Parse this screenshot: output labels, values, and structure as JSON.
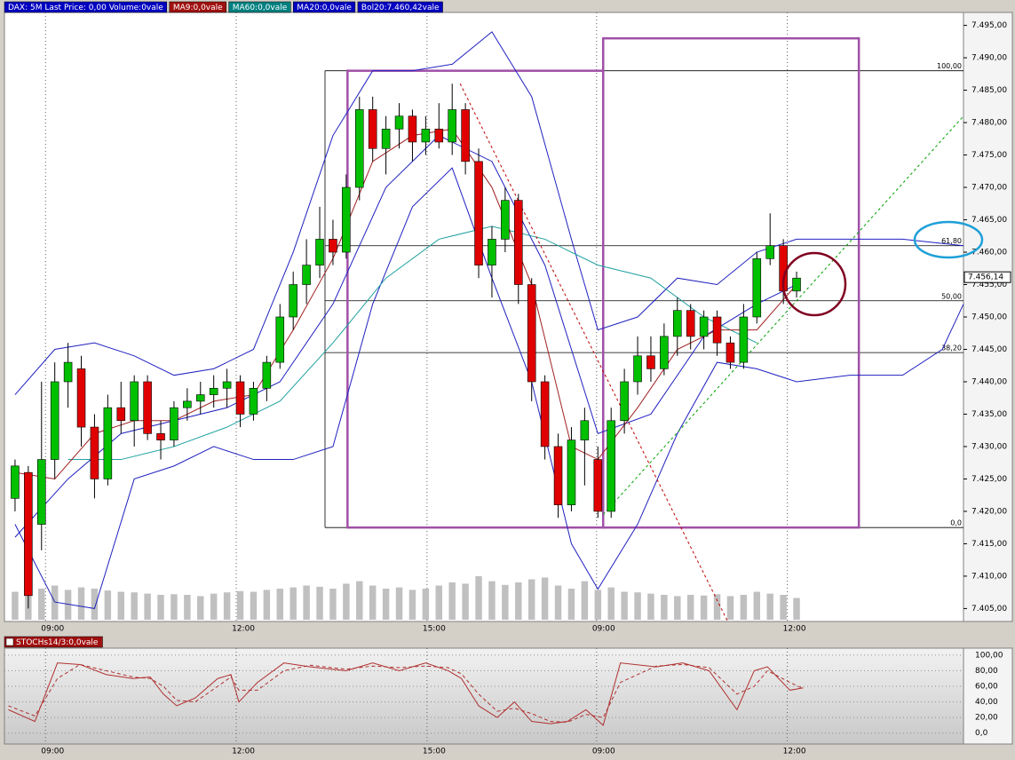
{
  "chart_data": [
    {
      "type": "candlestick",
      "header_labels": [
        {
          "text": "DAX: 5M Last Price: 0,00 Volume:0vale",
          "color": "#0000c0"
        },
        {
          "text": "MA9:0,0vale",
          "color": "#a01010"
        },
        {
          "text": "MA60:0,0vale",
          "color": "#008080"
        },
        {
          "text": "MA20:0,0vale",
          "color": "#0000c0"
        },
        {
          "text": "Bol20:7.460,42vale",
          "color": "#0000c0"
        }
      ],
      "up_color": "#00c000",
      "down_color": "#e00000",
      "xlim": [
        -0.8,
        71.6
      ],
      "ylim": [
        7403,
        7497
      ],
      "xticks": [
        {
          "value": 2.3,
          "label": "09:00"
        },
        {
          "value": 16.7,
          "label": "12:00"
        },
        {
          "value": 31.1,
          "label": "15:00"
        },
        {
          "value": 43.9,
          "label": "09:00"
        },
        {
          "value": 58.3,
          "label": "12:00"
        }
      ],
      "yticks": [
        {
          "value": 7405,
          "label": "7.405,00"
        },
        {
          "value": 7410,
          "label": "7.410,00"
        },
        {
          "value": 7415,
          "label": "7.415,00"
        },
        {
          "value": 7420,
          "label": "7.420,00"
        },
        {
          "value": 7425,
          "label": "7.425,00"
        },
        {
          "value": 7430,
          "label": "7.430,00"
        },
        {
          "value": 7435,
          "label": "7.435,00"
        },
        {
          "value": 7440,
          "label": "7.440,00"
        },
        {
          "value": 7445,
          "label": "7.445,00"
        },
        {
          "value": 7450,
          "label": "7.450,00"
        },
        {
          "value": 7455,
          "label": "7.455,00"
        },
        {
          "value": 7460,
          "label": "7.460,00"
        },
        {
          "value": 7465,
          "label": "7.465,00"
        },
        {
          "value": 7470,
          "label": "7.470,00"
        },
        {
          "value": 7475,
          "label": "7.475,00"
        },
        {
          "value": 7480,
          "label": "7.480,00"
        },
        {
          "value": 7485,
          "label": "7.485,00"
        },
        {
          "value": 7490,
          "label": "7.490,00"
        },
        {
          "value": 7495,
          "label": "7.495,00"
        }
      ],
      "grid": "x",
      "candles": [
        [
          7422,
          7428,
          7420,
          7427
        ],
        [
          7426,
          7427,
          7405,
          7407
        ],
        [
          7418,
          7440,
          7414,
          7428
        ],
        [
          7428,
          7443,
          7425,
          7440
        ],
        [
          7440,
          7446,
          7436,
          7443
        ],
        [
          7442,
          7444,
          7430,
          7433
        ],
        [
          7433,
          7435,
          7422,
          7425
        ],
        [
          7425,
          7438,
          7424,
          7436
        ],
        [
          7436,
          7440,
          7432,
          7434
        ],
        [
          7434,
          7441,
          7430,
          7440
        ],
        [
          7440,
          7441,
          7431,
          7432
        ],
        [
          7432,
          7434,
          7428,
          7431
        ],
        [
          7431,
          7437,
          7430,
          7436
        ],
        [
          7436,
          7439,
          7434,
          7437
        ],
        [
          7437,
          7440,
          7435,
          7438
        ],
        [
          7438,
          7441,
          7436,
          7439
        ],
        [
          7439,
          7442,
          7436,
          7440
        ],
        [
          7440,
          7441,
          7433,
          7435
        ],
        [
          7435,
          7440,
          7434,
          7439
        ],
        [
          7439,
          7444,
          7437,
          7443
        ],
        [
          7443,
          7452,
          7442,
          7450
        ],
        [
          7450,
          7457,
          7448,
          7455
        ],
        [
          7455,
          7462,
          7452,
          7458
        ],
        [
          7458,
          7467,
          7456,
          7462
        ],
        [
          7462,
          7465,
          7458,
          7460
        ],
        [
          7460,
          7472,
          7459,
          7470
        ],
        [
          7470,
          7484,
          7468,
          7482
        ],
        [
          7482,
          7484,
          7474,
          7476
        ],
        [
          7476,
          7481,
          7472,
          7479
        ],
        [
          7479,
          7483,
          7476,
          7481
        ],
        [
          7481,
          7482,
          7474,
          7477
        ],
        [
          7477,
          7481,
          7475,
          7479
        ],
        [
          7479,
          7483,
          7476,
          7477
        ],
        [
          7477,
          7486,
          7475,
          7482
        ],
        [
          7482,
          7483,
          7472,
          7474
        ],
        [
          7474,
          7476,
          7456,
          7458
        ],
        [
          7458,
          7464,
          7453,
          7462
        ],
        [
          7462,
          7470,
          7460,
          7468
        ],
        [
          7468,
          7469,
          7452,
          7455
        ],
        [
          7455,
          7456,
          7437,
          7440
        ],
        [
          7440,
          7441,
          7428,
          7430
        ],
        [
          7430,
          7432,
          7419,
          7421
        ],
        [
          7421,
          7433,
          7420,
          7431
        ],
        [
          7431,
          7436,
          7424,
          7434
        ],
        [
          7428,
          7430,
          7419,
          7420
        ],
        [
          7420,
          7436,
          7419,
          7434
        ],
        [
          7434,
          7442,
          7432,
          7440
        ],
        [
          7440,
          7447,
          7438,
          7444
        ],
        [
          7444,
          7447,
          7440,
          7442
        ],
        [
          7442,
          7449,
          7441,
          7447
        ],
        [
          7447,
          7453,
          7444,
          7451
        ],
        [
          7451,
          7452,
          7445,
          7447
        ],
        [
          7447,
          7451,
          7445,
          7450
        ],
        [
          7450,
          7451,
          7444,
          7446
        ],
        [
          7446,
          7447,
          7442,
          7443
        ],
        [
          7443,
          7452,
          7442,
          7450
        ],
        [
          7450,
          7460,
          7449,
          7459
        ],
        [
          7459,
          7466,
          7458,
          7461
        ],
        [
          7461,
          7462,
          7452,
          7454
        ],
        [
          7454,
          7457,
          7453,
          7456
        ]
      ],
      "volume": [
        45,
        60,
        50,
        55,
        48,
        52,
        50,
        47,
        45,
        44,
        42,
        40,
        41,
        40,
        38,
        42,
        44,
        46,
        45,
        48,
        50,
        52,
        55,
        53,
        50,
        58,
        62,
        55,
        50,
        52,
        48,
        50,
        55,
        60,
        58,
        70,
        62,
        56,
        60,
        65,
        68,
        55,
        50,
        62,
        48,
        52,
        45,
        44,
        42,
        40,
        38,
        40,
        39,
        41,
        38,
        40,
        45,
        42,
        40,
        35
      ],
      "vlim": [
        0,
        100
      ],
      "lines": [
        {
          "color": "#2020c0",
          "x": [
            0,
            3,
            6,
            9,
            12,
            15,
            18,
            21,
            24,
            27,
            30,
            33,
            36,
            39,
            42,
            44,
            47,
            50,
            53,
            56,
            59,
            62,
            65,
            67,
            71.6
          ],
          "values": [
            7438,
            7445,
            7446,
            7444,
            7441,
            7442,
            7445,
            7460,
            7478,
            7488,
            7488,
            7489,
            7494,
            7484,
            7462,
            7448,
            7450,
            7456,
            7455,
            7460,
            7462,
            7462,
            7462,
            7462,
            7461
          ]
        },
        {
          "color": "#2020c0",
          "x": [
            0,
            3,
            6,
            9,
            12,
            15,
            18,
            21,
            24,
            27,
            30,
            33,
            36,
            39,
            42,
            44,
            47,
            50,
            53,
            56,
            59,
            63,
            67,
            70,
            71.6
          ],
          "values": [
            7418,
            7406,
            7405,
            7425,
            7427,
            7430,
            7428,
            7428,
            7430,
            7452,
            7467,
            7473,
            7456,
            7440,
            7415,
            7408,
            7418,
            7432,
            7443,
            7442,
            7440,
            7441,
            7441,
            7445,
            7452
          ]
        },
        {
          "color": "#2020c0",
          "x": [
            0,
            4,
            8,
            12,
            16,
            20,
            24,
            28,
            32,
            36,
            40,
            44,
            48,
            52,
            56,
            59
          ],
          "values": [
            7416,
            7425,
            7432,
            7434,
            7436,
            7440,
            7452,
            7470,
            7478,
            7474,
            7458,
            7432,
            7435,
            7447,
            7452,
            7455
          ]
        },
        {
          "color": "#20a0a0",
          "x": [
            4,
            8,
            12,
            16,
            20,
            24,
            28,
            32,
            36,
            40,
            44,
            48,
            52,
            56
          ],
          "values": [
            7428,
            7428,
            7430,
            7433,
            7437,
            7446,
            7456,
            7462,
            7464,
            7462,
            7458,
            7456,
            7450,
            7446
          ]
        },
        {
          "color": "#a02020",
          "x": [
            0,
            3,
            6,
            9,
            12,
            15,
            18,
            21,
            24,
            27,
            30,
            33,
            36,
            39,
            42,
            44,
            47,
            50,
            53,
            56,
            59
          ],
          "values": [
            7426,
            7425,
            7432,
            7434,
            7434,
            7437,
            7438,
            7448,
            7459,
            7474,
            7478,
            7479,
            7470,
            7455,
            7430,
            7428,
            7436,
            7445,
            7448,
            7448,
            7455
          ]
        }
      ],
      "fib_start": 23.4,
      "fib_levels": [
        {
          "value": 7488,
          "label": "100,00"
        },
        {
          "value": 7461,
          "label": "61,80"
        },
        {
          "value": 7452.5,
          "label": "50,00"
        },
        {
          "value": 7444.5,
          "label": "38,20"
        },
        {
          "value": 7417.5,
          "label": "0,0"
        }
      ],
      "boxes": [
        {
          "x": [
            25.1,
            44.4
          ],
          "y": [
            7417.5,
            7488
          ],
          "color": "#a050a8"
        },
        {
          "x": [
            44.4,
            63.7
          ],
          "y": [
            7417.5,
            7493
          ],
          "color": "#a050a8"
        }
      ],
      "trend_lines": [
        {
          "x": [
            33.6,
            53.8
          ],
          "y": [
            7486,
            7403
          ],
          "color": "#c00000"
        },
        {
          "x": [
            44.4,
            71.6
          ],
          "y": [
            7419.5,
            7481
          ],
          "color": "#00a000"
        }
      ],
      "last_price": {
        "value": 7456.14,
        "label": "7.456,14"
      }
    },
    {
      "type": "line",
      "title": "STOCHs14/3:0,0vale",
      "xlim": [
        -0.8,
        71.6
      ],
      "ylim": [
        -14,
        109
      ],
      "xticks": [
        {
          "value": 2.3,
          "label": "09:00"
        },
        {
          "value": 16.7,
          "label": "12:00"
        },
        {
          "value": 31.1,
          "label": "15:00"
        },
        {
          "value": 43.9,
          "label": "09:00"
        },
        {
          "value": 58.3,
          "label": "12:00"
        }
      ],
      "yticks": [
        {
          "value": 100,
          "label": "100,00"
        },
        {
          "value": 80,
          "label": "80,00"
        },
        {
          "value": 60,
          "label": "60,00"
        },
        {
          "value": 40,
          "label": "40,00"
        },
        {
          "value": 20,
          "label": "20,00"
        },
        {
          "value": 0,
          "label": "0,0"
        }
      ],
      "series": [
        {
          "color": "#b03030",
          "dash": false,
          "x": [
            -0.5,
            1.5,
            3.2,
            4.9,
            6.9,
            8.9,
            10.2,
            11.2,
            12.2,
            13.6,
            15.3,
            16.3,
            16.9,
            18.3,
            20.3,
            22.3,
            25,
            27,
            29,
            31,
            32.7,
            33.7,
            35,
            36.4,
            37.7,
            39,
            40.4,
            41.7,
            43.1,
            44.4,
            45.7,
            48.4,
            50.4,
            52.4,
            54.5,
            55.8,
            56.8,
            58.5,
            59.5
          ],
          "values": [
            30,
            15,
            90,
            88,
            75,
            70,
            72,
            50,
            35,
            45,
            70,
            75,
            40,
            65,
            90,
            85,
            80,
            90,
            80,
            90,
            80,
            70,
            35,
            20,
            40,
            15,
            12,
            15,
            30,
            10,
            90,
            85,
            90,
            80,
            30,
            80,
            85,
            55,
            58
          ]
        },
        {
          "color": "#b03030",
          "dash": true,
          "x": [
            -0.5,
            1.5,
            3.2,
            4.9,
            6.9,
            8.9,
            10.2,
            11.2,
            12.2,
            13.6,
            15.3,
            16.3,
            16.9,
            18.3,
            20.3,
            22.3,
            25,
            27,
            29,
            31,
            32.7,
            33.7,
            35,
            36.4,
            37.7,
            39,
            40.4,
            41.7,
            43.1,
            44.4,
            45.7,
            48.4,
            50.4,
            52.4,
            54.5,
            55.8,
            56.8,
            58.5,
            59.5
          ],
          "values": [
            35,
            22,
            70,
            88,
            80,
            72,
            70,
            60,
            42,
            40,
            60,
            72,
            55,
            55,
            80,
            87,
            82,
            86,
            84,
            86,
            84,
            76,
            50,
            28,
            32,
            25,
            15,
            14,
            24,
            20,
            65,
            86,
            88,
            84,
            50,
            60,
            80,
            65,
            57
          ]
        }
      ]
    }
  ]
}
